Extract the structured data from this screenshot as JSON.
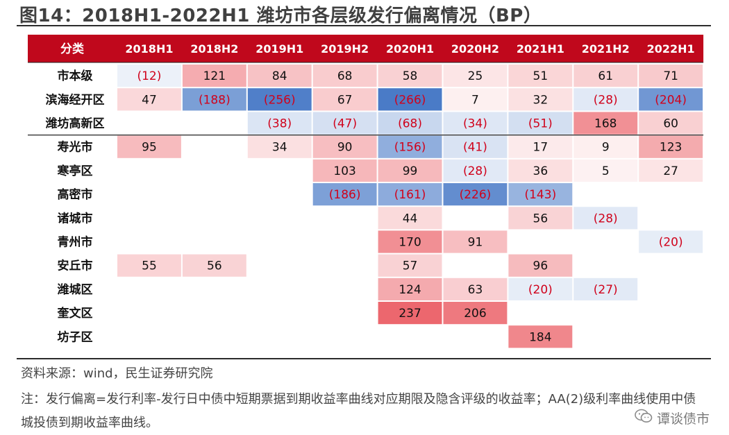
{
  "figure_title": "图14：2018H1-2022H1 潍坊市各层级发行偏离情况（BP）",
  "source": "资料来源：wind，民生证券研究院",
  "note": "注：发行偏离=发行利率-发行日中债中短期票据到期收益率曲线对应期限及隐含评级的收益率；AA(2)级利率曲线使用中债城投债到期收益率曲线。",
  "watermark": "谭谈债市",
  "colors": {
    "header_bg": "#c0081c",
    "header_text": "#ffffff",
    "positive": "#e8474f",
    "negative": "#3a6fc2",
    "negative_text": "#d0021b",
    "positive_text": "#111111"
  },
  "chart_data": {
    "type": "heatmap",
    "title": "",
    "corner_label": "分类",
    "columns": [
      "2018H1",
      "2018H2",
      "2019H1",
      "2019H2",
      "2020H1",
      "2020H2",
      "2021H1",
      "2021H2",
      "2022H1"
    ],
    "rows": [
      {
        "name": "市本级",
        "values": [
          -12,
          121,
          84,
          68,
          58,
          25,
          51,
          61,
          71
        ]
      },
      {
        "name": "滨海经开区",
        "values": [
          47,
          -188,
          -256,
          67,
          -266,
          7,
          32,
          -28,
          -204
        ]
      },
      {
        "name": "潍坊高新区",
        "values": [
          null,
          null,
          -38,
          -47,
          -68,
          -34,
          -51,
          168,
          60
        ]
      },
      {
        "name": "寿光市",
        "values": [
          95,
          null,
          34,
          90,
          -156,
          -41,
          17,
          9,
          123
        ]
      },
      {
        "name": "寒亭区",
        "values": [
          null,
          null,
          null,
          103,
          99,
          -28,
          36,
          5,
          27
        ]
      },
      {
        "name": "高密市",
        "values": [
          null,
          null,
          null,
          -186,
          -161,
          -226,
          -143,
          null,
          null
        ]
      },
      {
        "name": "诸城市",
        "values": [
          null,
          null,
          null,
          null,
          44,
          null,
          56,
          -28,
          null
        ]
      },
      {
        "name": "青州市",
        "values": [
          null,
          null,
          null,
          null,
          170,
          91,
          null,
          null,
          -20
        ]
      },
      {
        "name": "安丘市",
        "values": [
          55,
          56,
          null,
          null,
          57,
          null,
          96,
          null,
          null
        ]
      },
      {
        "name": "潍城区",
        "values": [
          null,
          null,
          null,
          null,
          124,
          63,
          -20,
          -27,
          null
        ]
      },
      {
        "name": "奎文区",
        "values": [
          null,
          null,
          null,
          null,
          237,
          206,
          null,
          null,
          null
        ]
      },
      {
        "name": "坊子区",
        "values": [
          null,
          null,
          null,
          null,
          null,
          null,
          184,
          null,
          null
        ]
      }
    ],
    "color_scale": {
      "max_abs": 266
    },
    "group_separator_after_row": 2,
    "negative_format": "parentheses"
  }
}
